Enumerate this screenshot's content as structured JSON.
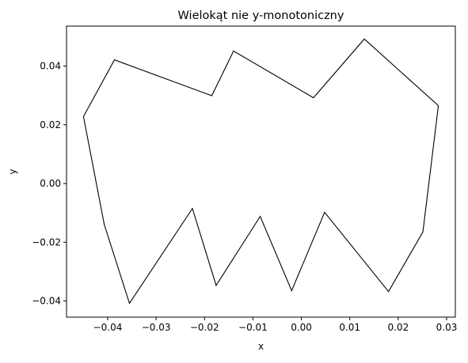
{
  "chart_data": {
    "type": "line",
    "title": "Wielokąt nie y-monotoniczny",
    "xlabel": "x",
    "ylabel": "y",
    "xlim": [
      -0.0485,
      0.0318
    ],
    "ylim": [
      -0.0455,
      0.0536
    ],
    "grid": false,
    "closed": true,
    "line_color": "#000000",
    "xticks": [
      {
        "value": -0.04,
        "label": "−0.04"
      },
      {
        "value": -0.03,
        "label": "−0.03"
      },
      {
        "value": -0.02,
        "label": "−0.02"
      },
      {
        "value": -0.01,
        "label": "−0.01"
      },
      {
        "value": 0.0,
        "label": "0.00"
      },
      {
        "value": 0.01,
        "label": "0.01"
      },
      {
        "value": 0.02,
        "label": "0.02"
      },
      {
        "value": 0.03,
        "label": "0.03"
      }
    ],
    "yticks": [
      {
        "value": -0.04,
        "label": "−0.04"
      },
      {
        "value": -0.02,
        "label": "−0.02"
      },
      {
        "value": 0.0,
        "label": "0.00"
      },
      {
        "value": 0.02,
        "label": "0.02"
      },
      {
        "value": 0.04,
        "label": "0.04"
      }
    ],
    "series": [
      {
        "points": [
          {
            "x": -0.045,
            "y": 0.0228
          },
          {
            "x": -0.0386,
            "y": 0.0421
          },
          {
            "x": -0.0185,
            "y": 0.0299
          },
          {
            "x": -0.014,
            "y": 0.0451
          },
          {
            "x": 0.0025,
            "y": 0.0292
          },
          {
            "x": 0.013,
            "y": 0.0492
          },
          {
            "x": 0.0283,
            "y": 0.0265
          },
          {
            "x": 0.0251,
            "y": -0.0165
          },
          {
            "x": 0.018,
            "y": -0.0368
          },
          {
            "x": 0.0048,
            "y": -0.0098
          },
          {
            "x": -0.002,
            "y": -0.0365
          },
          {
            "x": -0.0085,
            "y": -0.0112
          },
          {
            "x": -0.0176,
            "y": -0.0347
          },
          {
            "x": -0.0225,
            "y": -0.0085
          },
          {
            "x": -0.0355,
            "y": -0.0408
          },
          {
            "x": -0.0407,
            "y": -0.014
          }
        ]
      }
    ]
  }
}
